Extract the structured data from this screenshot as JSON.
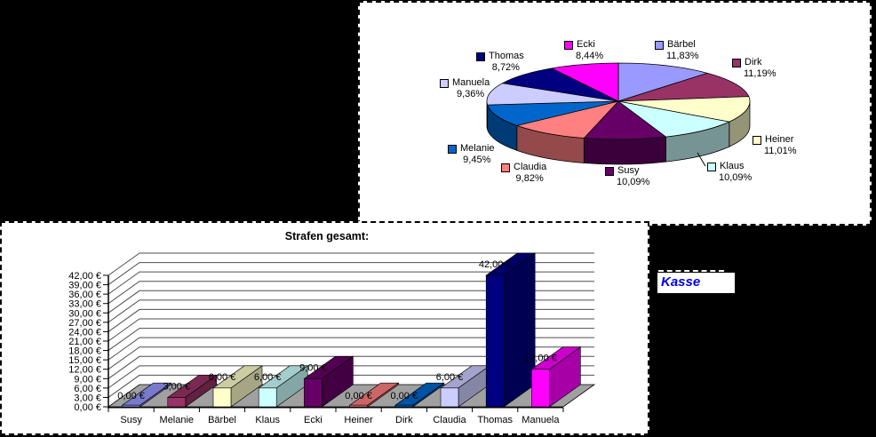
{
  "kasse": {
    "label": "Kasse",
    "color": "#0000EE"
  },
  "chart_data": [
    {
      "type": "pie",
      "style": "3d",
      "title": "",
      "labels": [
        "Bärbel",
        "Dirk",
        "Heiner",
        "Klaus",
        "Susy",
        "Claudia",
        "Melanie",
        "Manuela",
        "Thomas",
        "Ecki"
      ],
      "values": [
        11.83,
        11.19,
        11.01,
        10.09,
        10.09,
        9.82,
        9.45,
        9.36,
        8.72,
        8.44
      ],
      "percent_labels": [
        "11,83%",
        "11,19%",
        "11,01%",
        "10,09%",
        "10,09%",
        "9,82%",
        "9,45%",
        "9,36%",
        "8,72%",
        "8,44%"
      ],
      "colors": [
        "#9999FF",
        "#993366",
        "#FFFFCC",
        "#CCFFFF",
        "#660066",
        "#FF8080",
        "#0066CC",
        "#CCCCFF",
        "#000080",
        "#FF00FF"
      ],
      "start_angle_deg": 0,
      "direction": "clockwise",
      "legend_position": "data-labels"
    },
    {
      "type": "bar",
      "style": "3d",
      "title": "Strafen gesamt:",
      "categories": [
        "Susy",
        "Melanie",
        "Bärbel",
        "Klaus",
        "Ecki",
        "Heiner",
        "Dirk",
        "Claudia",
        "Thomas",
        "Manuela"
      ],
      "values": [
        0,
        3,
        6,
        6,
        9,
        0,
        0,
        6,
        42,
        12
      ],
      "value_labels": [
        "0,00 €",
        "3,00 €",
        "6,00 €",
        "6,00 €",
        "9,00 €",
        "0,00 €",
        "0,00 €",
        "6,00 €",
        "42,00 €",
        "12,00 €"
      ],
      "colors": [
        "#9999FF",
        "#993366",
        "#FFFFCC",
        "#CCFFFF",
        "#660066",
        "#FF8080",
        "#0066CC",
        "#CCCCFF",
        "#000080",
        "#FF00FF"
      ],
      "ylim": [
        0,
        42
      ],
      "ytick_step": 3,
      "ytick_labels": [
        "0,00 €",
        "3,00 €",
        "6,00 €",
        "9,00 €",
        "12,00 €",
        "15,00 €",
        "18,00 €",
        "21,00 €",
        "24,00 €",
        "27,00 €",
        "30,00 €",
        "33,00 €",
        "36,00 €",
        "39,00 €",
        "42,00 €"
      ],
      "xlabel": "",
      "ylabel": "",
      "grid": true,
      "floor_color": "#A0A0A0",
      "wall_color": "#FFFFFF"
    }
  ]
}
